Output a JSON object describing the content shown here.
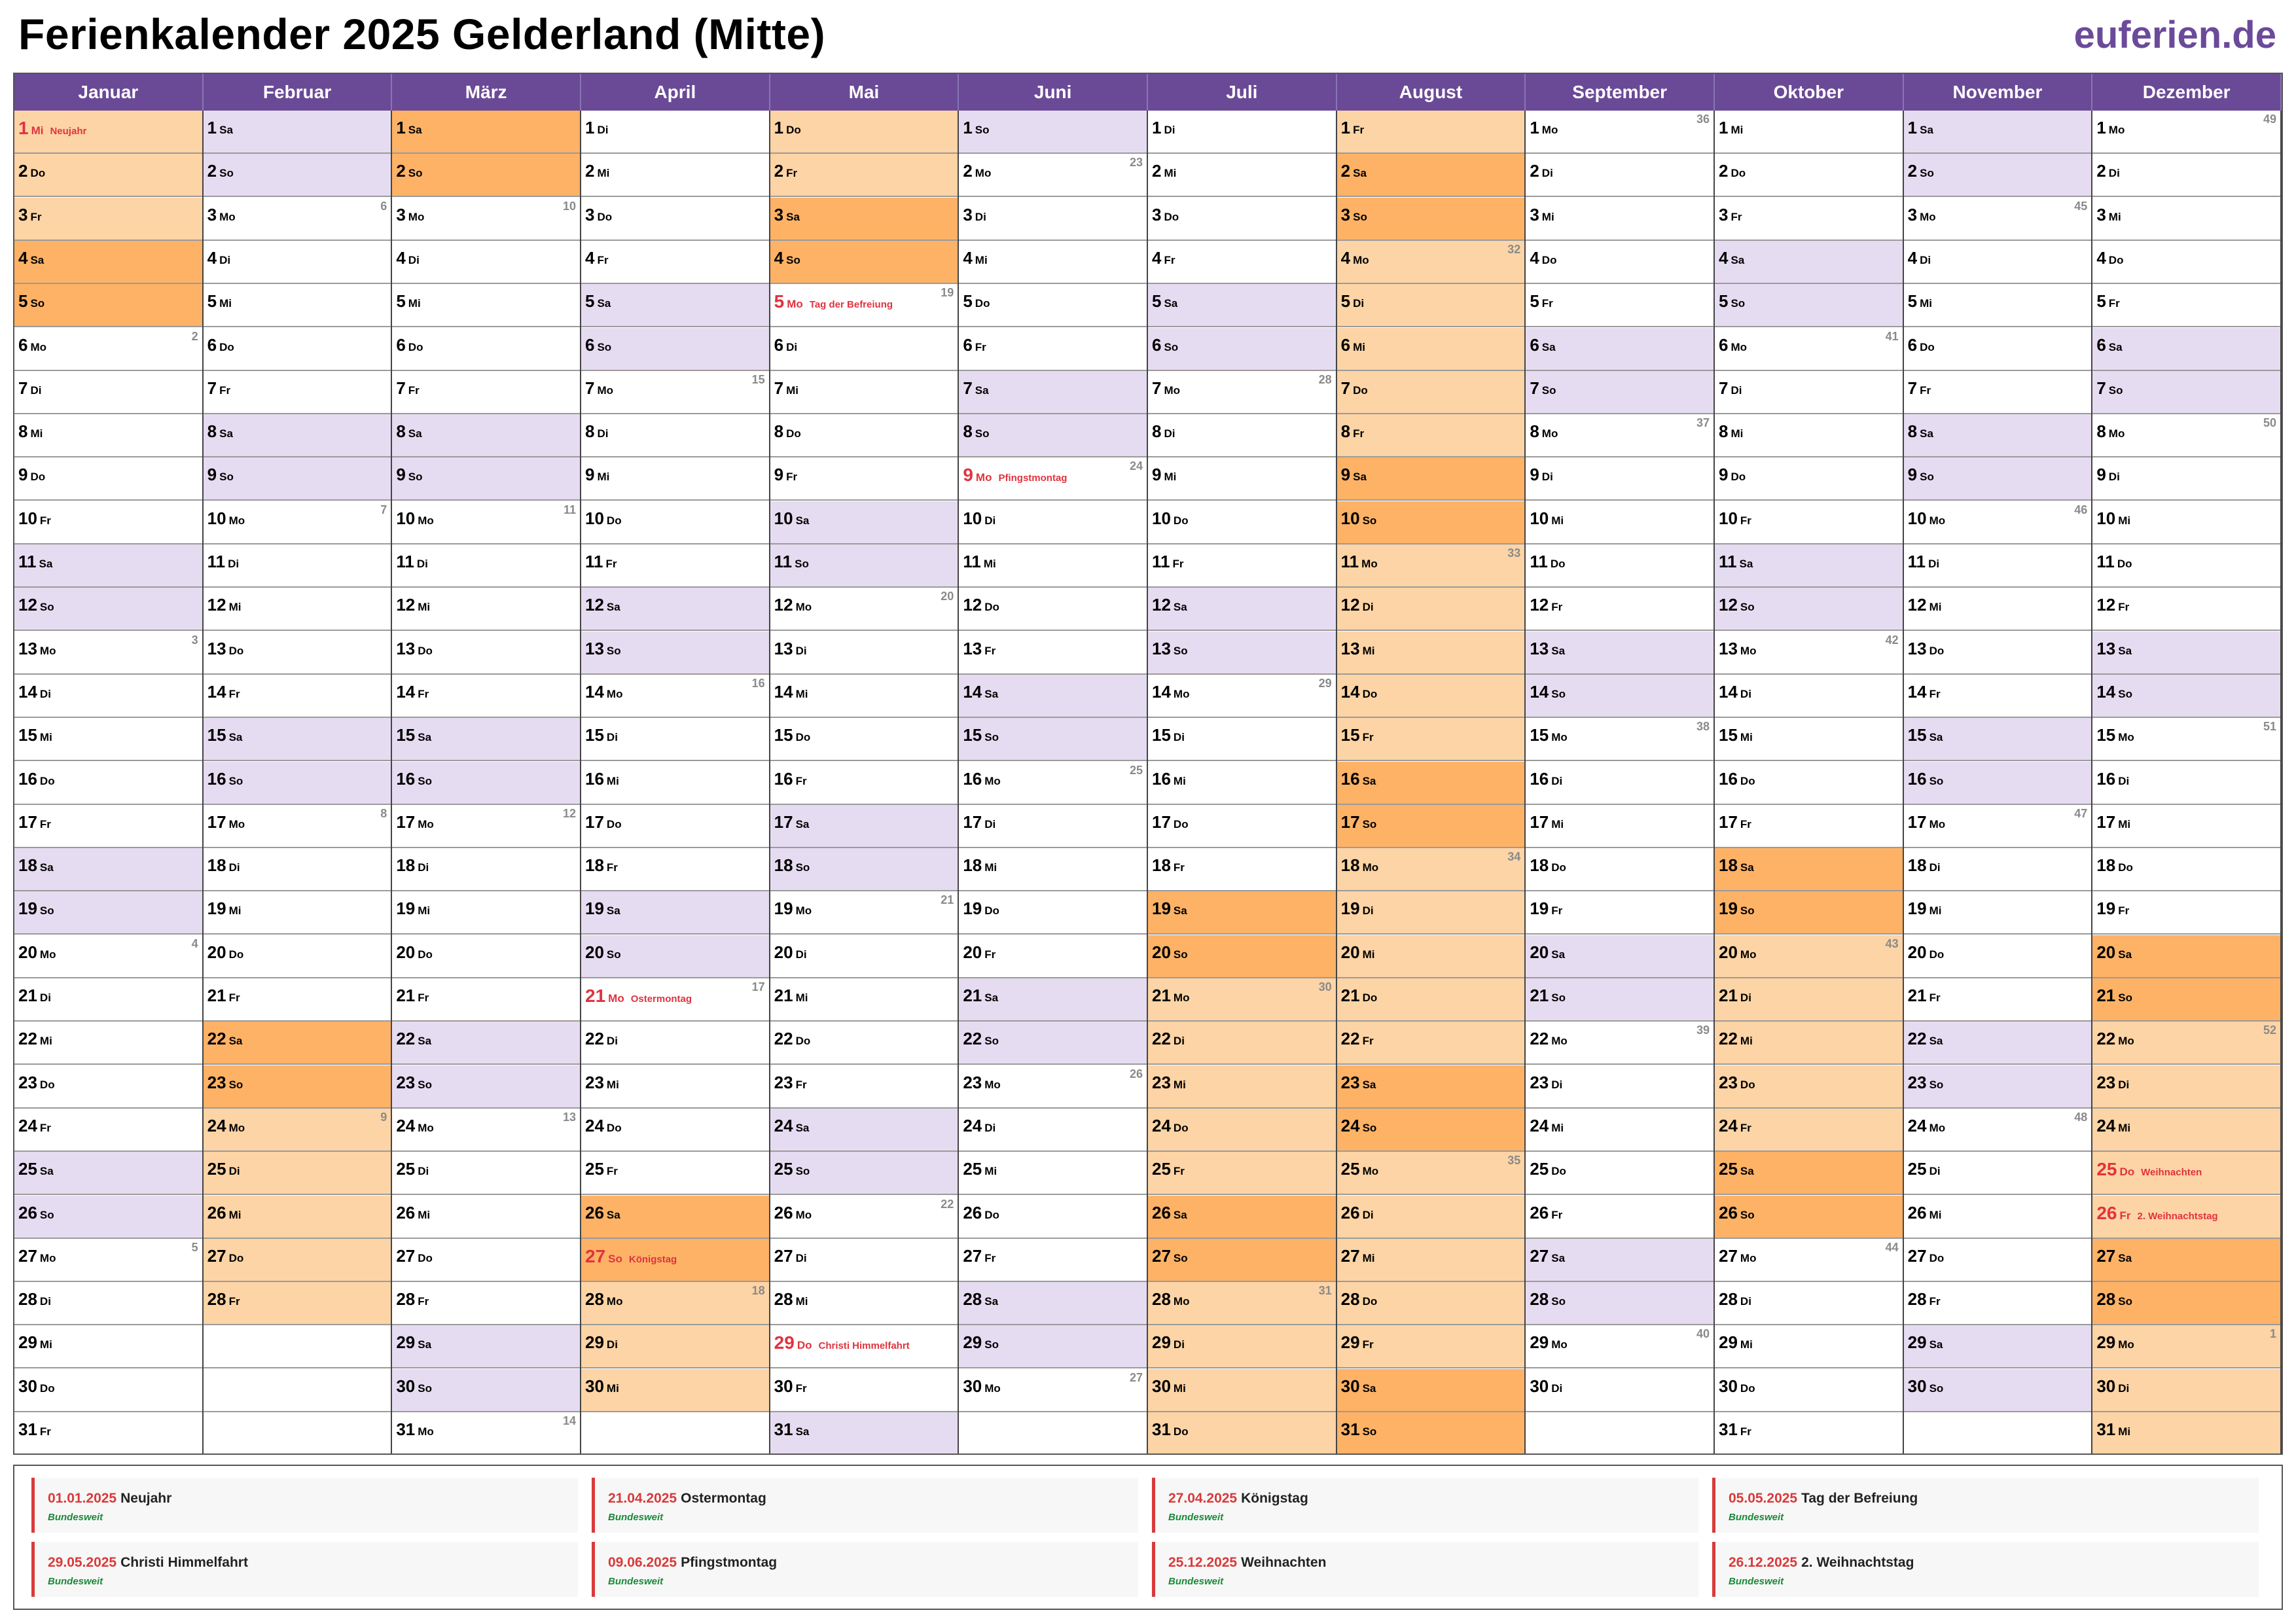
{
  "title": "Ferienkalender 2025 Gelderland (Mitte)",
  "brand": "euferien.de",
  "year": 2025,
  "colors": {
    "header": "#6a4a96",
    "weekend": "#e6dcf1",
    "holiday_period": "#fdd4a5",
    "holiday_weekend": "#fdb266",
    "public_holiday_text": "#e0333f",
    "week_number_text": "#8a8a8a",
    "legend_scope_text": "#1a8a3a"
  },
  "weekday_abbr": [
    "So",
    "Mo",
    "Di",
    "Mi",
    "Do",
    "Fr",
    "Sa"
  ],
  "months": [
    "Januar",
    "Februar",
    "März",
    "April",
    "Mai",
    "Juni",
    "Juli",
    "August",
    "September",
    "Oktober",
    "November",
    "Dezember"
  ],
  "holiday_ranges": [
    {
      "from": "2025-01-01",
      "to": "2025-01-05"
    },
    {
      "from": "2025-02-22",
      "to": "2025-03-02"
    },
    {
      "from": "2025-04-26",
      "to": "2025-05-04"
    },
    {
      "from": "2025-07-19",
      "to": "2025-08-31"
    },
    {
      "from": "2025-10-18",
      "to": "2025-10-26"
    },
    {
      "from": "2025-12-20",
      "to": "2025-12-31"
    }
  ],
  "public_holidays": [
    {
      "date": "2025-01-01",
      "name": "Neujahr",
      "date_label": "01.01.2025",
      "scope": "Bundesweit"
    },
    {
      "date": "2025-04-21",
      "name": "Ostermontag",
      "date_label": "21.04.2025",
      "scope": "Bundesweit"
    },
    {
      "date": "2025-04-27",
      "name": "Königstag",
      "date_label": "27.04.2025",
      "scope": "Bundesweit"
    },
    {
      "date": "2025-05-05",
      "name": "Tag der Befreiung",
      "date_label": "05.05.2025",
      "scope": "Bundesweit"
    },
    {
      "date": "2025-05-29",
      "name": "Christi Himmelfahrt",
      "date_label": "29.05.2025",
      "scope": "Bundesweit"
    },
    {
      "date": "2025-06-09",
      "name": "Pfingstmontag",
      "date_label": "09.06.2025",
      "scope": "Bundesweit"
    },
    {
      "date": "2025-12-25",
      "name": "Weihnachten",
      "date_label": "25.12.2025",
      "scope": "Bundesweit"
    },
    {
      "date": "2025-12-26",
      "name": "2. Weihnachtstag",
      "date_label": "26.12.2025",
      "scope": "Bundesweit"
    }
  ]
}
